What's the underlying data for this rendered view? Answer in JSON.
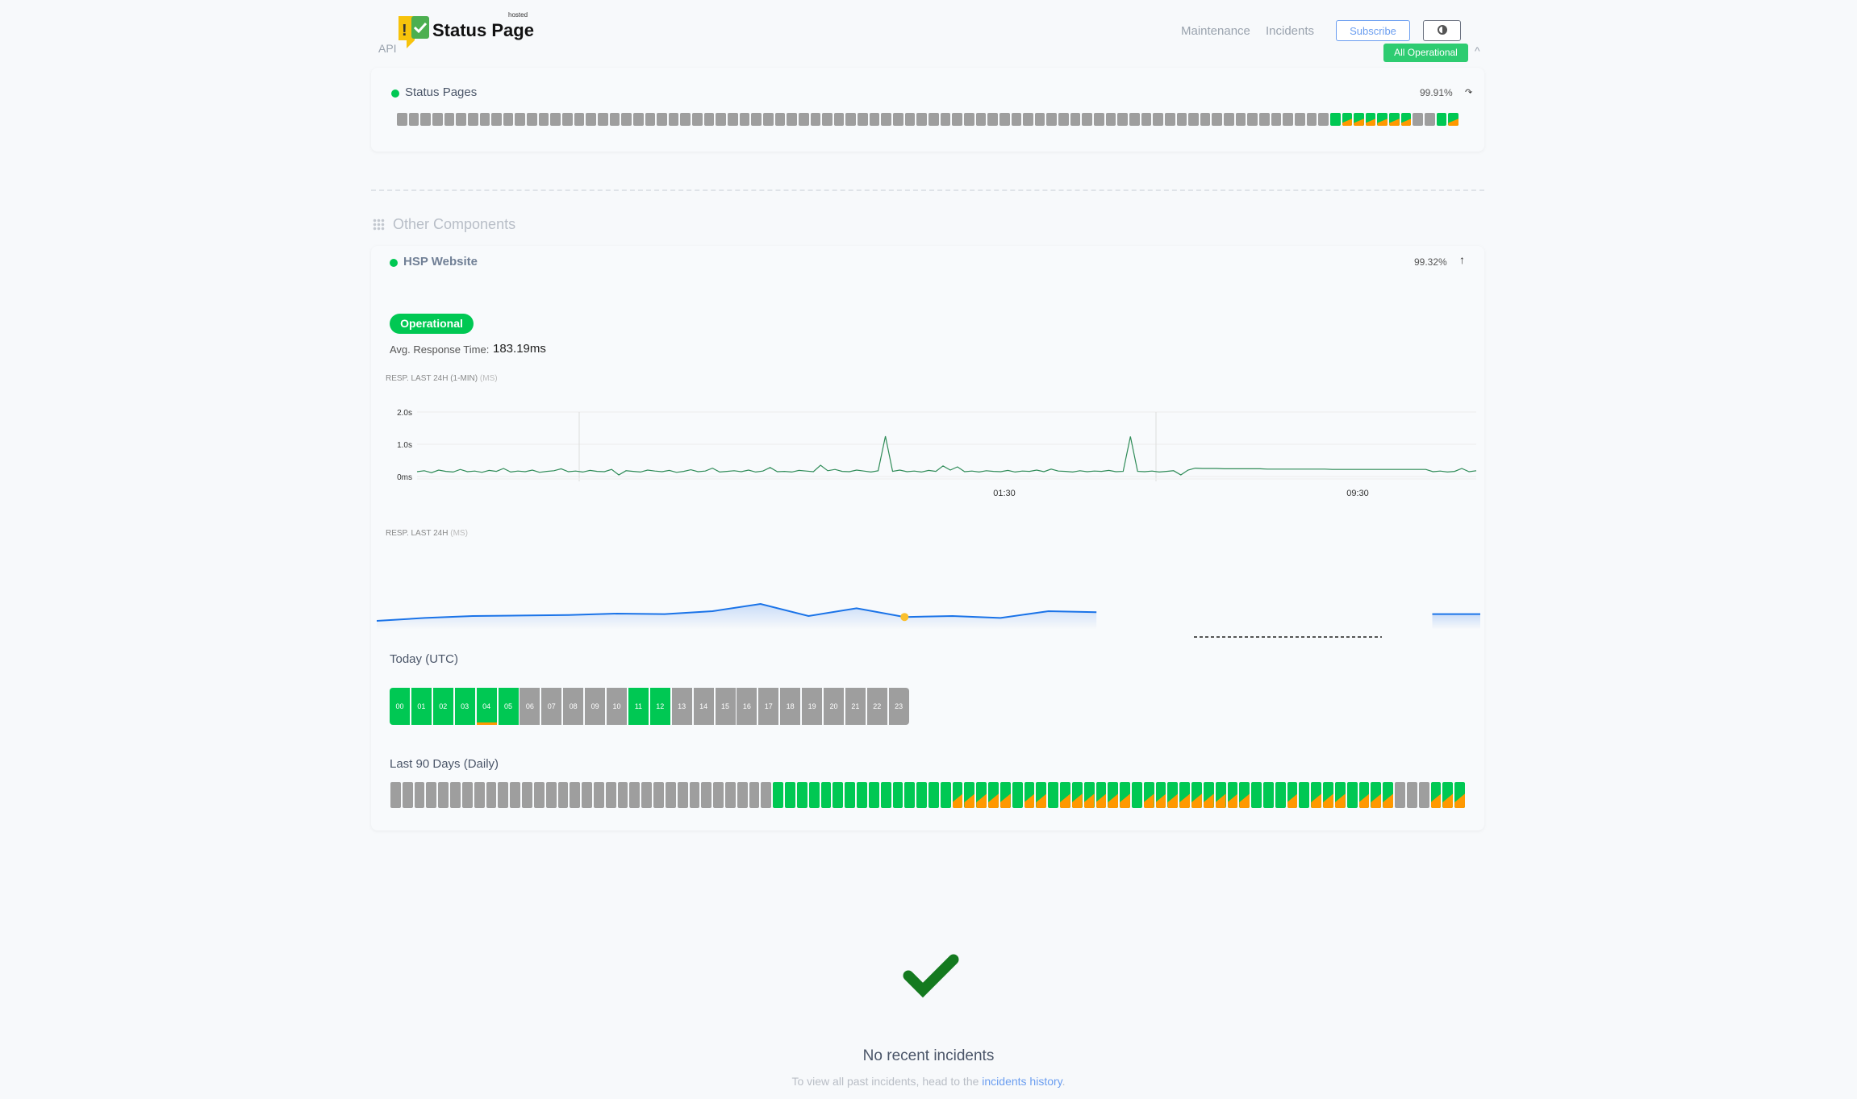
{
  "header": {
    "logo_text": "Status Page",
    "logo_small": "hosted",
    "api_label": "API",
    "nav": [
      "Maintenance",
      "Incidents"
    ],
    "subscribe": "Subscribe",
    "overall_status": "All Operational"
  },
  "colors": {
    "operational": "#00c853",
    "degraded": "#ff9800",
    "nodata": "#9e9e9e",
    "accent": "#1a73e8",
    "check": "#147a1f"
  },
  "status_pages": {
    "name": "Status Pages",
    "uptime": "99.91%",
    "days": [
      "gray",
      "gray",
      "gray",
      "gray",
      "gray",
      "gray",
      "gray",
      "gray",
      "gray",
      "gray",
      "gray",
      "gray",
      "gray",
      "gray",
      "gray",
      "gray",
      "gray",
      "gray",
      "gray",
      "gray",
      "gray",
      "gray",
      "gray",
      "gray",
      "gray",
      "gray",
      "gray",
      "gray",
      "gray",
      "gray",
      "gray",
      "gray",
      "gray",
      "gray",
      "gray",
      "gray",
      "gray",
      "gray",
      "gray",
      "gray",
      "gray",
      "gray",
      "gray",
      "gray",
      "gray",
      "gray",
      "gray",
      "gray",
      "gray",
      "gray",
      "gray",
      "gray",
      "gray",
      "gray",
      "gray",
      "gray",
      "gray",
      "gray",
      "gray",
      "gray",
      "gray",
      "gray",
      "gray",
      "gray",
      "gray",
      "gray",
      "gray",
      "gray",
      "gray",
      "gray",
      "gray",
      "gray",
      "gray",
      "gray",
      "gray",
      "gray",
      "gray",
      "gray",
      "gray",
      "green",
      "mixed",
      "mixed",
      "mixed",
      "mixed",
      "mixed",
      "mixed",
      "gray",
      "gray",
      "green",
      "mixed"
    ]
  },
  "other_components": {
    "title": "Other Components"
  },
  "hsp": {
    "name": "HSP Website",
    "uptime": "99.32%",
    "status": "Operational",
    "avg_label": "Avg. Response Time:",
    "avg_value": "183.19ms",
    "chart1_label": "RESP. LAST 24H (1-MIN)",
    "chart1_unit": "(MS)",
    "chart2_label": "RESP. LAST 24H",
    "chart2_unit": "(MS)",
    "today_label": "Today (UTC)",
    "days_label": "Last 90 Days (Daily)",
    "hours": [
      {
        "h": "00",
        "s": "green"
      },
      {
        "h": "01",
        "s": "green"
      },
      {
        "h": "02",
        "s": "green"
      },
      {
        "h": "03",
        "s": "green"
      },
      {
        "h": "04",
        "s": "green-partial"
      },
      {
        "h": "05",
        "s": "green"
      },
      {
        "h": "06",
        "s": "gray"
      },
      {
        "h": "07",
        "s": "gray"
      },
      {
        "h": "08",
        "s": "gray"
      },
      {
        "h": "09",
        "s": "gray"
      },
      {
        "h": "10",
        "s": "gray"
      },
      {
        "h": "11",
        "s": "green"
      },
      {
        "h": "12",
        "s": "green"
      },
      {
        "h": "13",
        "s": "gray"
      },
      {
        "h": "14",
        "s": "gray"
      },
      {
        "h": "15",
        "s": "gray"
      },
      {
        "h": "16",
        "s": "gray"
      },
      {
        "h": "17",
        "s": "gray"
      },
      {
        "h": "18",
        "s": "gray"
      },
      {
        "h": "19",
        "s": "gray"
      },
      {
        "h": "20",
        "s": "gray"
      },
      {
        "h": "21",
        "s": "gray"
      },
      {
        "h": "22",
        "s": "gray"
      },
      {
        "h": "23",
        "s": "gray"
      }
    ],
    "days": [
      "gray",
      "gray",
      "gray",
      "gray",
      "gray",
      "gray",
      "gray",
      "gray",
      "gray",
      "gray",
      "gray",
      "gray",
      "gray",
      "gray",
      "gray",
      "gray",
      "gray",
      "gray",
      "gray",
      "gray",
      "gray",
      "gray",
      "gray",
      "gray",
      "gray",
      "gray",
      "gray",
      "gray",
      "gray",
      "gray",
      "gray",
      "gray",
      "green",
      "green",
      "green",
      "green",
      "green",
      "green",
      "green",
      "green",
      "green",
      "green",
      "green",
      "green",
      "green",
      "green",
      "green",
      "mixed",
      "mixed",
      "mixed",
      "mixed",
      "mixed",
      "green",
      "mixed",
      "mixed",
      "green",
      "mixed",
      "mixed",
      "mixed",
      "mixed",
      "mixed",
      "mixed",
      "green",
      "mixed",
      "mixed",
      "mixed",
      "mixed",
      "mixed",
      "mixed",
      "mixed",
      "mixed",
      "mixed",
      "green",
      "green",
      "green",
      "mixed",
      "green",
      "mixed",
      "mixed",
      "mixed",
      "green",
      "mixed",
      "mixed",
      "mixed",
      "gray",
      "gray",
      "gray",
      "mixed",
      "mixed",
      "mixed"
    ]
  },
  "chart_data": [
    {
      "type": "line",
      "ylabel_ticks": [
        "0ms",
        "1.0s",
        "2.0s"
      ],
      "ylim_s": [
        0,
        2
      ],
      "xticks": [
        "01:30",
        "09:30"
      ],
      "grid": true,
      "values_s": [
        0.15,
        0.18,
        0.12,
        0.2,
        0.16,
        0.14,
        0.22,
        0.15,
        0.17,
        0.13,
        0.19,
        0.16,
        0.25,
        0.14,
        0.17,
        0.15,
        0.2,
        0.13,
        0.16,
        0.18,
        0.24,
        0.15,
        0.17,
        0.14,
        0.19,
        0.16,
        0.15,
        0.22,
        0.05,
        0.18,
        0.16,
        0.14,
        0.2,
        0.17,
        0.15,
        0.19,
        0.13,
        0.16,
        0.21,
        0.15,
        0.17,
        0.26,
        0.14,
        0.16,
        0.18,
        0.15,
        0.2,
        0.14,
        0.17,
        0.28,
        0.15,
        0.16,
        0.14,
        0.19,
        0.17,
        0.15,
        0.35,
        0.18,
        0.22,
        0.16,
        0.15,
        0.2,
        0.17,
        0.14,
        0.18,
        1.25,
        0.16,
        0.2,
        0.15,
        0.17,
        0.14,
        0.19,
        0.16,
        0.33,
        0.2,
        0.3,
        0.15,
        0.17,
        0.14,
        0.18,
        0.16,
        0.15,
        0.19,
        0.14,
        0.17,
        0.16,
        0.2,
        0.15,
        0.23,
        0.17,
        0.16,
        0.14,
        0.18,
        0.15,
        0.17,
        0.16,
        0.19,
        0.15,
        0.16,
        1.24,
        0.16,
        0.15,
        0.17,
        0.14,
        0.16,
        0.18,
        0.05,
        0.2,
        0.26,
        0.25,
        0.25,
        0.25,
        0.24,
        0.24,
        0.24,
        0.24,
        0.24,
        0.24,
        0.23,
        0.23,
        0.23,
        0.23,
        0.23,
        0.23,
        0.23,
        0.23,
        0.23,
        0.22,
        0.22,
        0.22,
        0.22,
        0.22,
        0.22,
        0.22,
        0.22,
        0.22,
        0.22,
        0.22,
        0.22,
        0.22,
        0.22,
        0.15,
        0.17,
        0.14,
        0.16,
        0.25,
        0.15,
        0.18
      ]
    },
    {
      "type": "area",
      "hours": [
        "00",
        "01",
        "02",
        "03",
        "04",
        "05",
        "06",
        "07",
        "08",
        "09",
        "10",
        "11",
        "12",
        "13",
        "14",
        "15",
        "16",
        "17",
        "18",
        "19",
        "20",
        "21",
        "22",
        "23"
      ],
      "values_ms": [
        150,
        156,
        160,
        161,
        162,
        165,
        164,
        170,
        185,
        160,
        176,
        158,
        160,
        156,
        170,
        168,
        null,
        null,
        null,
        null,
        null,
        null,
        164,
        164
      ],
      "highlight_hour": "11"
    }
  ],
  "incidents": {
    "title": "No recent incidents",
    "sub_prefix": "To view all past incidents, head to the",
    "link": "incidents history",
    "sub_suffix": "."
  }
}
